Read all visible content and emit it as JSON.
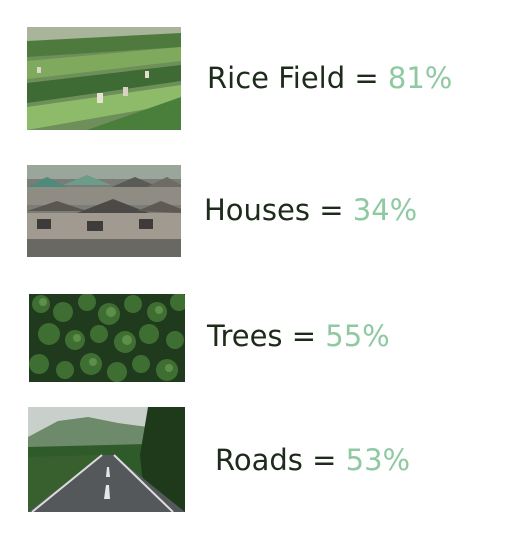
{
  "rows": [
    {
      "label": "Rice Field",
      "separator": "=",
      "value": "81%",
      "image": "rice-field-photo"
    },
    {
      "label": "Houses",
      "separator": "=",
      "value": "34%",
      "image": "houses-photo"
    },
    {
      "label": "Trees",
      "separator": "=",
      "value": "55%",
      "image": "trees-photo"
    },
    {
      "label": "Roads",
      "separator": "=",
      "value": "53%",
      "image": "roads-photo"
    }
  ],
  "colors": {
    "label_text": "#1d2b1a",
    "value_text": "#8fc9a2"
  }
}
